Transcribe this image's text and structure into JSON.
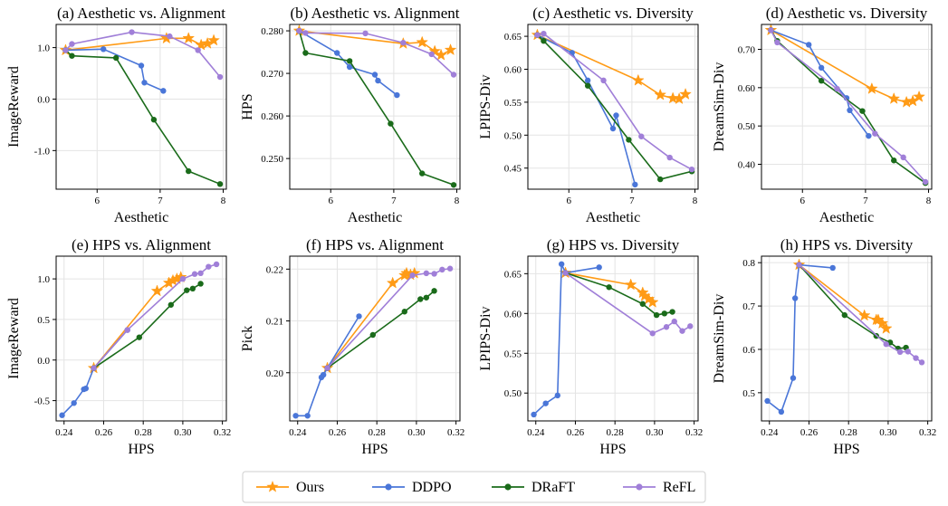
{
  "colors": {
    "Ours": "#ff9b16",
    "DDPO": "#4a76d8",
    "DRaFT": "#1a6b1a",
    "ReFL": "#a07fd8"
  },
  "legend": {
    "items": [
      "Ours",
      "DDPO",
      "DRaFT",
      "ReFL"
    ],
    "placement": "bottom-center"
  },
  "chart_data": [
    {
      "type": "line",
      "title": "(a) Aesthetic vs. Alignment",
      "xlabel": "Aesthetic",
      "ylabel": "ImageReward",
      "xlim": [
        5.35,
        8.05
      ],
      "ylim": [
        -1.75,
        1.45
      ],
      "xticks": [
        6,
        7,
        8
      ],
      "yticks": [
        -1.0,
        0.0,
        1.0
      ],
      "yticklabels": [
        "-1.0",
        "0.0",
        "1.0"
      ],
      "series": [
        {
          "name": "Ours",
          "x": [
            5.5,
            7.1,
            7.45,
            7.65,
            7.75,
            7.85
          ],
          "y": [
            0.95,
            1.18,
            1.18,
            1.05,
            1.08,
            1.14
          ]
        },
        {
          "name": "DDPO",
          "x": [
            5.5,
            6.1,
            6.7,
            6.75,
            7.05
          ],
          "y": [
            0.95,
            0.97,
            0.65,
            0.32,
            0.16
          ]
        },
        {
          "name": "DRaFT",
          "x": [
            5.5,
            5.6,
            6.3,
            6.9,
            7.45,
            7.95
          ],
          "y": [
            0.95,
            0.84,
            0.8,
            -0.4,
            -1.4,
            -1.65
          ]
        },
        {
          "name": "ReFL",
          "x": [
            5.5,
            5.6,
            6.55,
            7.15,
            7.6,
            7.95
          ],
          "y": [
            0.95,
            1.07,
            1.3,
            1.22,
            0.95,
            0.43
          ]
        }
      ]
    },
    {
      "type": "line",
      "title": "(b) Aesthetic vs. Alignment",
      "xlabel": "Aesthetic",
      "ylabel": "HPS",
      "xlim": [
        5.35,
        8.05
      ],
      "ylim": [
        0.2428,
        0.2815
      ],
      "xticks": [
        6,
        7,
        8
      ],
      "yticks": [
        0.25,
        0.26,
        0.27,
        0.28
      ],
      "yticklabels": [
        "0.250",
        "0.260",
        "0.270",
        "0.280"
      ],
      "series": [
        {
          "name": "Ours",
          "x": [
            5.5,
            7.15,
            7.45,
            7.65,
            7.75,
            7.9
          ],
          "y": [
            0.28,
            0.277,
            0.2773,
            0.2752,
            0.2743,
            0.2755
          ]
        },
        {
          "name": "DDPO",
          "x": [
            5.5,
            6.1,
            6.3,
            6.7,
            6.75,
            7.05
          ],
          "y": [
            0.28,
            0.2748,
            0.2715,
            0.2697,
            0.2683,
            0.2649
          ]
        },
        {
          "name": "DRaFT",
          "x": [
            5.5,
            5.6,
            6.3,
            6.95,
            7.45,
            7.95
          ],
          "y": [
            0.28,
            0.2748,
            0.2729,
            0.2582,
            0.2465,
            0.2438
          ]
        },
        {
          "name": "ReFL",
          "x": [
            5.5,
            5.6,
            6.55,
            7.15,
            7.6,
            7.95
          ],
          "y": [
            0.28,
            0.2795,
            0.2794,
            0.2772,
            0.2745,
            0.2697
          ]
        }
      ]
    },
    {
      "type": "line",
      "title": "(c) Aesthetic vs. Diversity",
      "xlabel": "Aesthetic",
      "ylabel": "LPIPS-Div",
      "xlim": [
        5.35,
        8.05
      ],
      "ylim": [
        0.418,
        0.668
      ],
      "xticks": [
        6,
        7,
        8
      ],
      "yticks": [
        0.45,
        0.5,
        0.55,
        0.6,
        0.65
      ],
      "yticklabels": [
        "0.45",
        "0.50",
        "0.55",
        "0.60",
        "0.65"
      ],
      "series": [
        {
          "name": "Ours",
          "x": [
            5.5,
            7.1,
            7.45,
            7.65,
            7.75,
            7.85
          ],
          "y": [
            0.652,
            0.583,
            0.561,
            0.556,
            0.555,
            0.562
          ]
        },
        {
          "name": "DDPO",
          "x": [
            5.5,
            6.05,
            6.3,
            6.7,
            6.75,
            7.05
          ],
          "y": [
            0.652,
            0.625,
            0.583,
            0.51,
            0.53,
            0.425
          ]
        },
        {
          "name": "DRaFT",
          "x": [
            5.5,
            5.6,
            6.3,
            6.95,
            7.45,
            7.95
          ],
          "y": [
            0.652,
            0.643,
            0.575,
            0.493,
            0.433,
            0.445
          ]
        },
        {
          "name": "ReFL",
          "x": [
            5.5,
            5.6,
            6.55,
            7.15,
            7.6,
            7.95
          ],
          "y": [
            0.652,
            0.654,
            0.583,
            0.498,
            0.466,
            0.448
          ]
        }
      ]
    },
    {
      "type": "line",
      "title": "(d) Aesthetic vs. Diversity",
      "xlabel": "Aesthetic",
      "ylabel": "DreamSim-Div",
      "xlim": [
        5.35,
        8.05
      ],
      "ylim": [
        0.335,
        0.765
      ],
      "xticks": [
        6,
        7,
        8
      ],
      "yticks": [
        0.4,
        0.5,
        0.6,
        0.7
      ],
      "yticklabels": [
        "0.40",
        "0.50",
        "0.60",
        "0.70"
      ],
      "series": [
        {
          "name": "Ours",
          "x": [
            5.5,
            7.1,
            7.45,
            7.65,
            7.75,
            7.85
          ],
          "y": [
            0.75,
            0.597,
            0.571,
            0.562,
            0.565,
            0.576
          ]
        },
        {
          "name": "DDPO",
          "x": [
            5.5,
            6.1,
            6.3,
            6.7,
            6.75,
            7.05
          ],
          "y": [
            0.75,
            0.712,
            0.652,
            0.573,
            0.541,
            0.474
          ]
        },
        {
          "name": "DRaFT",
          "x": [
            5.5,
            5.6,
            6.3,
            6.95,
            7.45,
            7.95
          ],
          "y": [
            0.75,
            0.722,
            0.618,
            0.539,
            0.41,
            0.351
          ]
        },
        {
          "name": "ReFL",
          "x": [
            5.5,
            5.6,
            6.55,
            7.15,
            7.6,
            7.95
          ],
          "y": [
            0.75,
            0.718,
            0.597,
            0.48,
            0.418,
            0.354
          ]
        }
      ]
    },
    {
      "type": "line",
      "title": "(e) HPS vs. Alignment",
      "xlabel": "HPS",
      "ylabel": "ImageReward",
      "xlim": [
        0.236,
        0.322
      ],
      "ylim": [
        -0.75,
        1.28
      ],
      "xticks": [
        0.24,
        0.26,
        0.28,
        0.3,
        0.32
      ],
      "yticks": [
        -0.5,
        0.0,
        0.5,
        1.0
      ],
      "xticklabels": [
        "0.24",
        "0.26",
        "0.28",
        "0.30",
        "0.32"
      ],
      "yticklabels": [
        "-0.5",
        "0.0",
        "0.5",
        "1.0"
      ],
      "series": [
        {
          "name": "Ours",
          "x": [
            0.255,
            0.287,
            0.293,
            0.295,
            0.297,
            0.299
          ],
          "y": [
            -0.1,
            0.85,
            0.95,
            0.98,
            1.0,
            1.02
          ]
        },
        {
          "name": "DDPO",
          "x": [
            0.239,
            0.245,
            0.25,
            0.251,
            0.255,
            0.272
          ],
          "y": [
            -0.68,
            -0.53,
            -0.36,
            -0.35,
            -0.1,
            0.37
          ]
        },
        {
          "name": "DRaFT",
          "x": [
            0.255,
            0.278,
            0.294,
            0.302,
            0.305,
            0.309
          ],
          "y": [
            -0.1,
            0.28,
            0.68,
            0.86,
            0.88,
            0.94
          ]
        },
        {
          "name": "ReFL",
          "x": [
            0.255,
            0.272,
            0.3,
            0.306,
            0.309,
            0.313,
            0.317
          ],
          "y": [
            -0.1,
            0.37,
            1.0,
            1.06,
            1.07,
            1.15,
            1.18
          ]
        }
      ]
    },
    {
      "type": "line",
      "title": "(f) HPS vs. Alignment",
      "xlabel": "HPS",
      "ylabel": "Pick",
      "xlim": [
        0.236,
        0.322
      ],
      "ylim": [
        0.1907,
        0.2225
      ],
      "xticks": [
        0.24,
        0.26,
        0.28,
        0.3,
        0.32
      ],
      "yticks": [
        0.2,
        0.21,
        0.22
      ],
      "xticklabels": [
        "0.24",
        "0.26",
        "0.28",
        "0.30",
        "0.32"
      ],
      "yticklabels": [
        "0.20",
        "0.21",
        "0.22"
      ],
      "series": [
        {
          "name": "Ours",
          "x": [
            0.255,
            0.288,
            0.294,
            0.295,
            0.297,
            0.299
          ],
          "y": [
            0.2009,
            0.2173,
            0.2188,
            0.2192,
            0.2189,
            0.2192
          ]
        },
        {
          "name": "DDPO",
          "x": [
            0.239,
            0.245,
            0.252,
            0.253,
            0.255,
            0.271
          ],
          "y": [
            0.1917,
            0.1917,
            0.1991,
            0.1996,
            0.2009,
            0.2109
          ]
        },
        {
          "name": "DRaFT",
          "x": [
            0.255,
            0.278,
            0.294,
            0.302,
            0.305,
            0.309
          ],
          "y": [
            0.2009,
            0.2073,
            0.2118,
            0.2142,
            0.2145,
            0.2158
          ]
        },
        {
          "name": "ReFL",
          "x": [
            0.255,
            0.298,
            0.305,
            0.309,
            0.313,
            0.317
          ],
          "y": [
            0.2009,
            0.2188,
            0.2192,
            0.2191,
            0.2199,
            0.2201
          ]
        }
      ]
    },
    {
      "type": "line",
      "title": "(g) HPS vs. Diversity",
      "xlabel": "HPS",
      "ylabel": "LPIPS-Div",
      "xlim": [
        0.236,
        0.322
      ],
      "ylim": [
        0.465,
        0.672
      ],
      "xticks": [
        0.24,
        0.26,
        0.28,
        0.3,
        0.32
      ],
      "yticks": [
        0.5,
        0.55,
        0.6,
        0.65
      ],
      "xticklabels": [
        "0.24",
        "0.26",
        "0.28",
        "0.30",
        "0.32"
      ],
      "yticklabels": [
        "0.50",
        "0.55",
        "0.60",
        "0.65"
      ],
      "series": [
        {
          "name": "Ours",
          "x": [
            0.255,
            0.288,
            0.294,
            0.295,
            0.297,
            0.299
          ],
          "y": [
            0.651,
            0.636,
            0.626,
            0.622,
            0.618,
            0.614
          ]
        },
        {
          "name": "DDPO",
          "x": [
            0.239,
            0.245,
            0.251,
            0.253,
            0.255,
            0.272
          ],
          "y": [
            0.473,
            0.487,
            0.497,
            0.662,
            0.651,
            0.658
          ]
        },
        {
          "name": "DRaFT",
          "x": [
            0.255,
            0.277,
            0.294,
            0.301,
            0.305,
            0.309
          ],
          "y": [
            0.651,
            0.633,
            0.612,
            0.598,
            0.6,
            0.602
          ]
        },
        {
          "name": "ReFL",
          "x": [
            0.255,
            0.299,
            0.306,
            0.31,
            0.314,
            0.318
          ],
          "y": [
            0.651,
            0.575,
            0.583,
            0.59,
            0.578,
            0.584
          ]
        }
      ]
    },
    {
      "type": "line",
      "title": "(h) HPS vs. Diversity",
      "xlabel": "HPS",
      "ylabel": "DreamSim-Div",
      "xlim": [
        0.236,
        0.322
      ],
      "ylim": [
        0.435,
        0.815
      ],
      "xticks": [
        0.24,
        0.26,
        0.28,
        0.3,
        0.32
      ],
      "yticks": [
        0.5,
        0.6,
        0.7,
        0.8
      ],
      "xticklabels": [
        "0.24",
        "0.26",
        "0.28",
        "0.30",
        "0.32"
      ],
      "yticklabels": [
        "0.5",
        "0.6",
        "0.7",
        "0.8"
      ],
      "series": [
        {
          "name": "Ours",
          "x": [
            0.255,
            0.288,
            0.294,
            0.295,
            0.297,
            0.299
          ],
          "y": [
            0.795,
            0.678,
            0.668,
            0.668,
            0.66,
            0.648
          ]
        },
        {
          "name": "DDPO",
          "x": [
            0.239,
            0.246,
            0.252,
            0.253,
            0.255,
            0.272
          ],
          "y": [
            0.481,
            0.456,
            0.534,
            0.718,
            0.795,
            0.788
          ]
        },
        {
          "name": "DRaFT",
          "x": [
            0.255,
            0.278,
            0.294,
            0.301,
            0.305,
            0.309
          ],
          "y": [
            0.795,
            0.679,
            0.631,
            0.616,
            0.602,
            0.604
          ]
        },
        {
          "name": "ReFL",
          "x": [
            0.255,
            0.299,
            0.306,
            0.31,
            0.314,
            0.317
          ],
          "y": [
            0.795,
            0.612,
            0.594,
            0.595,
            0.58,
            0.57
          ]
        }
      ]
    }
  ]
}
